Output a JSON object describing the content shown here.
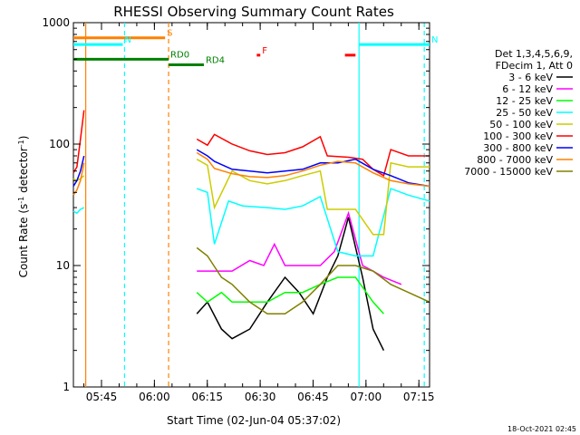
{
  "chart_data": {
    "type": "line",
    "title": "RHESSI Observing Summary Count Rates",
    "xlabel": "Start Time (02-Jun-04 05:37:02)",
    "ylabel": "Count Rate (s⁻¹ detector⁻¹)",
    "ylabel_parts": [
      "Count Rate (s",
      "-1",
      " detector",
      "-1",
      ")"
    ],
    "y_scale": "log",
    "ylim": [
      1,
      1000
    ],
    "y_ticks": [
      1,
      10,
      100,
      1000
    ],
    "y_tick_labels": [
      "1",
      "10",
      "100",
      "1000"
    ],
    "x_unit": "minutes after 05:37:02",
    "xlim": [
      0,
      101
    ],
    "x_ticks": [
      7.97,
      22.97,
      37.97,
      52.97,
      67.97,
      82.97,
      97.97
    ],
    "x_tick_labels": [
      "05:45",
      "06:00",
      "06:15",
      "06:30",
      "06:45",
      "07:00",
      "07:15"
    ],
    "legend": {
      "placement": "right",
      "header": [
        "Det 1,3,4,5,6,9,",
        "FDecim 1, Att 0"
      ]
    },
    "timestamp": "18-Oct-2021 02:45",
    "series": [
      {
        "name": "3 - 6 keV",
        "color": "#000000",
        "points": [
          [
            35,
            4
          ],
          [
            38,
            5
          ],
          [
            42,
            3
          ],
          [
            45,
            2.5
          ],
          [
            50,
            3
          ],
          [
            55,
            5
          ],
          [
            60,
            8
          ],
          [
            64,
            6
          ],
          [
            68,
            4
          ],
          [
            72,
            8
          ],
          [
            75,
            12
          ],
          [
            78,
            25
          ],
          [
            82,
            8
          ],
          [
            85,
            3
          ],
          [
            88,
            2
          ]
        ]
      },
      {
        "name": "6 - 12 keV",
        "color": "#ff00ff",
        "points": [
          [
            35,
            9
          ],
          [
            40,
            9
          ],
          [
            45,
            9
          ],
          [
            50,
            11
          ],
          [
            54,
            10
          ],
          [
            57,
            15
          ],
          [
            60,
            10
          ],
          [
            65,
            10
          ],
          [
            70,
            10
          ],
          [
            74,
            13
          ],
          [
            78,
            27
          ],
          [
            82,
            10
          ],
          [
            85,
            9
          ],
          [
            88,
            8
          ],
          [
            93,
            7
          ]
        ]
      },
      {
        "name": "12 - 25 keV",
        "color": "#00ff00",
        "points": [
          [
            35,
            6
          ],
          [
            38,
            5
          ],
          [
            42,
            6
          ],
          [
            45,
            5
          ],
          [
            50,
            5
          ],
          [
            55,
            5
          ],
          [
            60,
            6
          ],
          [
            65,
            6
          ],
          [
            70,
            7
          ],
          [
            75,
            8
          ],
          [
            80,
            8
          ],
          [
            85,
            5
          ],
          [
            88,
            4
          ]
        ]
      },
      {
        "name": "25 - 50 keV",
        "color": "#00ffff",
        "points": [
          [
            35,
            43
          ],
          [
            38,
            40
          ],
          [
            40,
            15
          ],
          [
            44,
            34
          ],
          [
            48,
            31
          ],
          [
            55,
            30
          ],
          [
            60,
            29
          ],
          [
            65,
            31
          ],
          [
            70,
            37
          ],
          [
            75,
            13
          ],
          [
            80,
            12
          ],
          [
            85,
            12
          ],
          [
            90,
            43
          ],
          [
            95,
            38
          ],
          [
            101,
            34
          ]
        ]
      },
      {
        "name": "50 - 100 keV",
        "color": "#cccc00",
        "points": [
          [
            35,
            75
          ],
          [
            38,
            67
          ],
          [
            40,
            30
          ],
          [
            45,
            60
          ],
          [
            50,
            50
          ],
          [
            55,
            47
          ],
          [
            60,
            50
          ],
          [
            65,
            55
          ],
          [
            70,
            60
          ],
          [
            72,
            29
          ],
          [
            80,
            29
          ],
          [
            85,
            18
          ],
          [
            88,
            18
          ],
          [
            90,
            70
          ],
          [
            95,
            65
          ],
          [
            101,
            65
          ]
        ]
      },
      {
        "name": "100 - 300 keV",
        "color": "#ff0000",
        "points": [
          [
            35,
            110
          ],
          [
            38,
            98
          ],
          [
            40,
            120
          ],
          [
            45,
            100
          ],
          [
            50,
            88
          ],
          [
            55,
            82
          ],
          [
            60,
            85
          ],
          [
            65,
            95
          ],
          [
            70,
            115
          ],
          [
            72,
            80
          ],
          [
            78,
            78
          ],
          [
            82,
            75
          ],
          [
            85,
            62
          ],
          [
            88,
            55
          ],
          [
            90,
            90
          ],
          [
            95,
            80
          ],
          [
            101,
            80
          ]
        ]
      },
      {
        "name": "300 - 800 keV",
        "color": "#0000ff",
        "points": [
          [
            35,
            90
          ],
          [
            38,
            80
          ],
          [
            40,
            72
          ],
          [
            45,
            62
          ],
          [
            50,
            60
          ],
          [
            55,
            58
          ],
          [
            60,
            60
          ],
          [
            65,
            62
          ],
          [
            70,
            70
          ],
          [
            75,
            70
          ],
          [
            80,
            75
          ],
          [
            85,
            62
          ],
          [
            90,
            55
          ],
          [
            95,
            48
          ],
          [
            101,
            45
          ]
        ]
      },
      {
        "name": "800 - 7000 keV",
        "color": "#ff8000",
        "points": [
          [
            35,
            85
          ],
          [
            38,
            75
          ],
          [
            40,
            63
          ],
          [
            45,
            57
          ],
          [
            50,
            54
          ],
          [
            55,
            53
          ],
          [
            60,
            55
          ],
          [
            65,
            60
          ],
          [
            70,
            67
          ],
          [
            75,
            72
          ],
          [
            80,
            70
          ],
          [
            85,
            58
          ],
          [
            90,
            50
          ],
          [
            95,
            47
          ],
          [
            101,
            45
          ]
        ]
      },
      {
        "name": "7000 - 15000 keV",
        "color": "#808000",
        "points": [
          [
            35,
            14
          ],
          [
            38,
            12
          ],
          [
            42,
            8
          ],
          [
            45,
            7
          ],
          [
            50,
            5
          ],
          [
            55,
            4
          ],
          [
            60,
            4
          ],
          [
            65,
            5
          ],
          [
            70,
            7
          ],
          [
            75,
            10
          ],
          [
            80,
            10
          ],
          [
            85,
            9
          ],
          [
            90,
            7
          ],
          [
            95,
            6
          ],
          [
            101,
            5
          ]
        ]
      }
    ],
    "pre_gap_series": [
      {
        "name": "25 - 50 keV",
        "color": "#00ffff",
        "points": [
          [
            0,
            28
          ],
          [
            1,
            27
          ],
          [
            2,
            29
          ],
          [
            3,
            30
          ]
        ]
      },
      {
        "name": "50 - 100 keV",
        "color": "#cccc00",
        "points": [
          [
            0,
            52
          ],
          [
            1,
            50
          ],
          [
            2,
            52
          ],
          [
            3,
            55
          ]
        ]
      },
      {
        "name": "100 - 300 keV",
        "color": "#ff0000",
        "points": [
          [
            0,
            58
          ],
          [
            1,
            65
          ],
          [
            2,
            110
          ],
          [
            3,
            190
          ]
        ]
      },
      {
        "name": "300 - 800 keV",
        "color": "#0000ff",
        "points": [
          [
            0,
            45
          ],
          [
            1,
            50
          ],
          [
            2,
            60
          ],
          [
            3,
            80
          ]
        ]
      },
      {
        "name": "800 - 7000 keV",
        "color": "#ff8000",
        "points": [
          [
            0,
            38
          ],
          [
            1,
            42
          ],
          [
            2,
            50
          ],
          [
            3,
            70
          ]
        ]
      }
    ],
    "annotations": [
      {
        "label": "S",
        "color": "#ff8000",
        "x_range": [
          0,
          26
        ],
        "y": 750
      },
      {
        "label": "N",
        "color": "#00ffff",
        "x_range": [
          0,
          14
        ],
        "y": 660
      },
      {
        "label": "N",
        "color": "#00ffff",
        "x_range": [
          81,
          101
        ],
        "y": 660
      },
      {
        "label": "F",
        "color": "#ff0000",
        "x_range": [
          52,
          53
        ],
        "y": 540
      },
      {
        "label": "",
        "color": "#ff0000",
        "x_range": [
          77,
          80
        ],
        "y": 540
      },
      {
        "label": "RD0",
        "color": "#008000",
        "x_range": [
          0,
          27
        ],
        "y": 500
      },
      {
        "label": "RD4",
        "color": "#008000",
        "x_range": [
          27,
          37
        ],
        "y": 450
      }
    ],
    "vertical_markers": [
      {
        "x": 3.5,
        "color": "#ff8000",
        "style": "solid"
      },
      {
        "x": 14.5,
        "color": "#00ffff",
        "style": "dashed"
      },
      {
        "x": 27,
        "color": "#ff8000",
        "style": "dashed"
      },
      {
        "x": 81,
        "color": "#00ffff",
        "style": "solid"
      },
      {
        "x": 99.5,
        "color": "#00ffff",
        "style": "dashed"
      }
    ]
  }
}
